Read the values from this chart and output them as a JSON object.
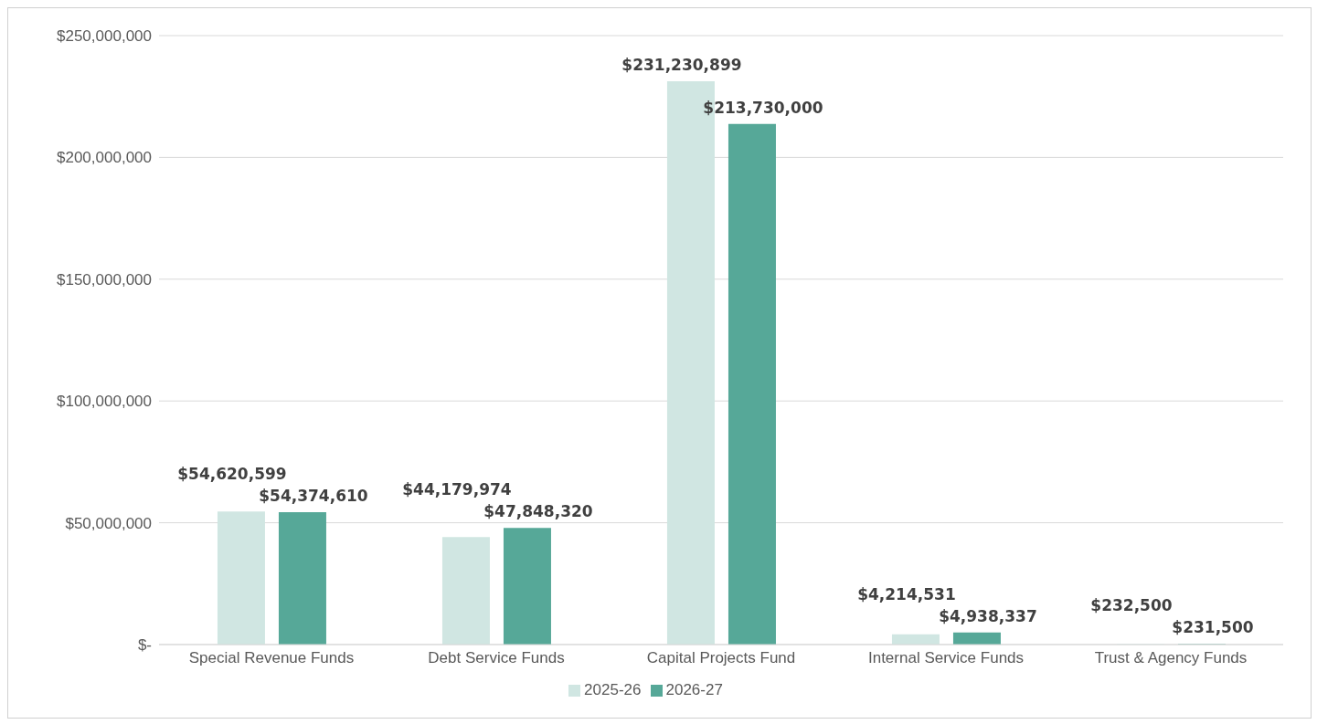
{
  "chart_data": {
    "type": "bar",
    "categories": [
      "Special Revenue Funds",
      "Debt Service Funds",
      "Capital Projects Fund",
      "Internal Service Funds",
      "Trust & Agency Funds"
    ],
    "series": [
      {
        "name": "2025-26",
        "color": "#d0e6e2",
        "values": [
          54620599,
          44179974,
          231230899,
          4214531,
          232500
        ],
        "value_labels": [
          "$54,620,599",
          "$44,179,974",
          "$231,230,899",
          "$4,214,531",
          "$232,500"
        ]
      },
      {
        "name": "2026-27",
        "color": "#56a898",
        "values": [
          54374610,
          47848320,
          213730000,
          4938337,
          231500
        ],
        "value_labels": [
          "$54,374,610",
          "$47,848,320",
          "$213,730,000",
          "$4,938,337",
          "$231,500"
        ]
      }
    ],
    "ylim": [
      0,
      250000000
    ],
    "yticks": [
      {
        "value": 0,
        "label": "$-"
      },
      {
        "value": 50000000,
        "label": "$50,000,000"
      },
      {
        "value": 100000000,
        "label": "$100,000,000"
      },
      {
        "value": 150000000,
        "label": "$150,000,000"
      },
      {
        "value": 200000000,
        "label": "$200,000,000"
      },
      {
        "value": 250000000,
        "label": "$250,000,000"
      }
    ],
    "grid": "y",
    "legend": "bottom"
  }
}
